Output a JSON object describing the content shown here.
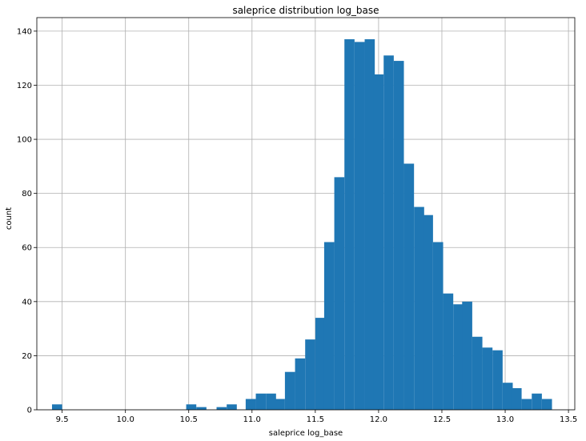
{
  "chart_data": {
    "type": "bar",
    "title": "saleprice distribution log_base",
    "xlabel": "saleprice log_base",
    "ylabel": "count",
    "xlim": [
      9.3,
      13.55
    ],
    "ylim": [
      0,
      145
    ],
    "xticks": [
      9.5,
      10.0,
      10.5,
      11.0,
      11.5,
      12.0,
      12.5,
      13.0,
      13.5
    ],
    "xtick_labels": [
      "9.5",
      "10.0",
      "10.5",
      "11.0",
      "11.5",
      "12.0",
      "12.5",
      "13.0",
      "13.5"
    ],
    "yticks": [
      0,
      20,
      40,
      60,
      80,
      100,
      120,
      140
    ],
    "ytick_labels": [
      "0",
      "20",
      "40",
      "60",
      "80",
      "100",
      "120",
      "140"
    ],
    "grid": true,
    "bar_color": "#1f77b4",
    "bin_width": 0.078,
    "bins": [
      {
        "x": 9.42,
        "count": 2
      },
      {
        "x": 10.48,
        "count": 2
      },
      {
        "x": 10.56,
        "count": 1
      },
      {
        "x": 10.72,
        "count": 1
      },
      {
        "x": 10.8,
        "count": 2
      },
      {
        "x": 10.95,
        "count": 4
      },
      {
        "x": 11.03,
        "count": 6
      },
      {
        "x": 11.11,
        "count": 6
      },
      {
        "x": 11.18,
        "count": 4
      },
      {
        "x": 11.26,
        "count": 14
      },
      {
        "x": 11.34,
        "count": 19
      },
      {
        "x": 11.42,
        "count": 26
      },
      {
        "x": 11.5,
        "count": 34
      },
      {
        "x": 11.57,
        "count": 62
      },
      {
        "x": 11.65,
        "count": 86
      },
      {
        "x": 11.73,
        "count": 137
      },
      {
        "x": 11.81,
        "count": 136
      },
      {
        "x": 11.89,
        "count": 137
      },
      {
        "x": 11.96,
        "count": 124
      },
      {
        "x": 12.04,
        "count": 131
      },
      {
        "x": 12.12,
        "count": 129
      },
      {
        "x": 12.2,
        "count": 91
      },
      {
        "x": 12.28,
        "count": 75
      },
      {
        "x": 12.35,
        "count": 72
      },
      {
        "x": 12.43,
        "count": 62
      },
      {
        "x": 12.51,
        "count": 43
      },
      {
        "x": 12.59,
        "count": 39
      },
      {
        "x": 12.66,
        "count": 40
      },
      {
        "x": 12.74,
        "count": 27
      },
      {
        "x": 12.82,
        "count": 23
      },
      {
        "x": 12.9,
        "count": 22
      },
      {
        "x": 12.98,
        "count": 10
      },
      {
        "x": 13.05,
        "count": 8
      },
      {
        "x": 13.13,
        "count": 4
      },
      {
        "x": 13.21,
        "count": 6
      },
      {
        "x": 13.29,
        "count": 4
      }
    ]
  }
}
